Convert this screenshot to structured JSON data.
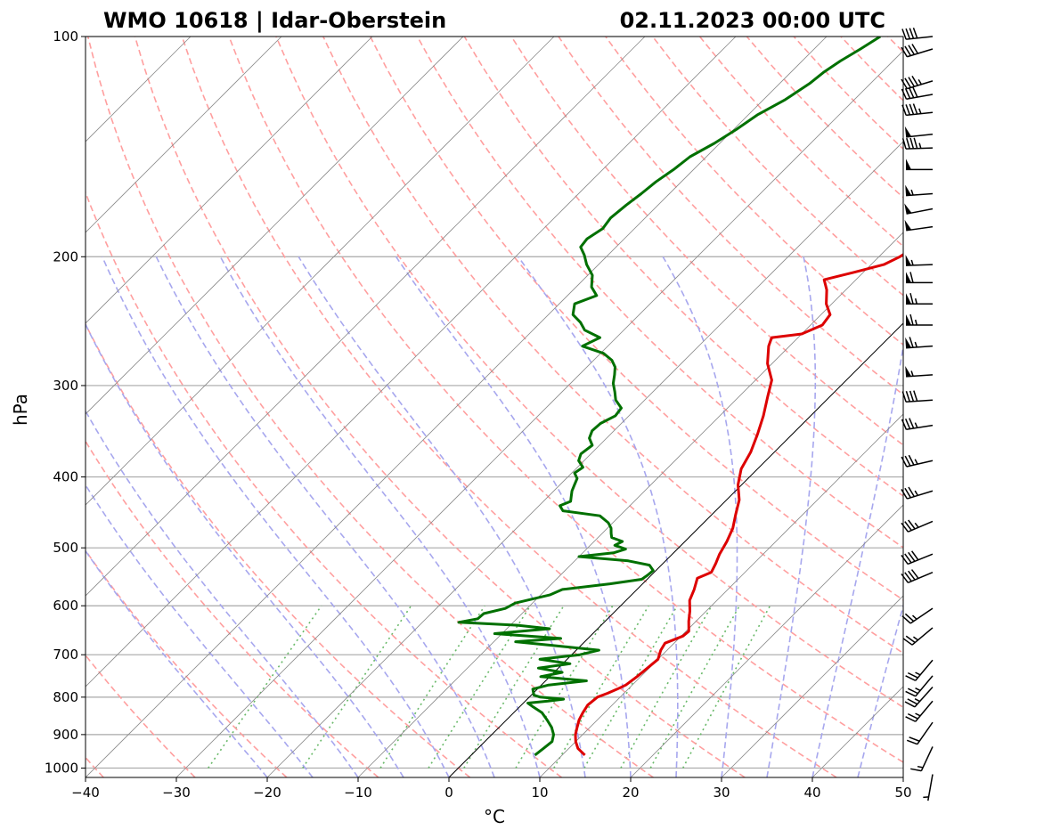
{
  "chart_data": {
    "type": "line",
    "subtype": "skew-t log-p",
    "title_left": "WMO 10618 | Idar-Oberstein",
    "title_right": "02.11.2023 00:00 UTC",
    "xlabel": "°C",
    "ylabel": "hPa",
    "xlim": [
      -40,
      50
    ],
    "ylim": [
      1030,
      100
    ],
    "x_ticks": [
      -40,
      -30,
      -20,
      -10,
      0,
      10,
      20,
      30,
      40,
      50
    ],
    "x_tick_labels": [
      "−40",
      "−30",
      "−20",
      "−10",
      "0",
      "10",
      "20",
      "30",
      "40",
      "50"
    ],
    "y_ticks": [
      100,
      200,
      300,
      400,
      500,
      600,
      700,
      800,
      900,
      1000
    ],
    "y_tick_labels": [
      "100",
      "200",
      "300",
      "400",
      "500",
      "600",
      "700",
      "800",
      "900",
      "1000"
    ],
    "isotherms_c": [
      -110,
      -100,
      -90,
      -80,
      -70,
      -60,
      -50,
      -40,
      -30,
      -20,
      -10,
      0,
      10,
      20,
      30,
      40,
      50
    ],
    "highlight_isotherm_c": 0,
    "dry_adiabats_theta_c": [
      -40,
      -30,
      -20,
      -10,
      0,
      10,
      20,
      30,
      40,
      50,
      60,
      70,
      80,
      90,
      100,
      110,
      120,
      130,
      140,
      150,
      160,
      170,
      180,
      190,
      200
    ],
    "moist_adiabats_start_c": [
      -20,
      -15,
      -10,
      -5,
      0,
      5,
      10,
      15,
      20,
      25,
      30,
      35,
      40,
      45
    ],
    "mixing_ratio_gkg": [
      0.4,
      1,
      2,
      3,
      4,
      6,
      8,
      10,
      13,
      16,
      20
    ],
    "series": [
      {
        "name": "temperature",
        "color": "#dd0000",
        "points": [
          [
            960,
            12.5
          ],
          [
            940,
            11.0
          ],
          [
            920,
            10.0
          ],
          [
            900,
            9.2
          ],
          [
            880,
            8.6
          ],
          [
            860,
            8.0
          ],
          [
            840,
            7.6
          ],
          [
            820,
            7.3
          ],
          [
            800,
            7.5
          ],
          [
            790,
            8.2
          ],
          [
            780,
            8.8
          ],
          [
            770,
            9.3
          ],
          [
            750,
            9.6
          ],
          [
            730,
            9.8
          ],
          [
            710,
            10.0
          ],
          [
            690,
            9.3
          ],
          [
            675,
            9.0
          ],
          [
            660,
            10.2
          ],
          [
            650,
            10.3
          ],
          [
            630,
            9.2
          ],
          [
            610,
            8.2
          ],
          [
            590,
            7.0
          ],
          [
            570,
            6.3
          ],
          [
            550,
            5.4
          ],
          [
            540,
            6.3
          ],
          [
            525,
            5.8
          ],
          [
            510,
            5.2
          ],
          [
            490,
            4.6
          ],
          [
            470,
            3.8
          ],
          [
            450,
            2.6
          ],
          [
            430,
            1.4
          ],
          [
            410,
            -0.4
          ],
          [
            390,
            -1.8
          ],
          [
            370,
            -2.6
          ],
          [
            350,
            -3.8
          ],
          [
            330,
            -5.2
          ],
          [
            310,
            -6.9
          ],
          [
            295,
            -8.2
          ],
          [
            280,
            -10.5
          ],
          [
            265,
            -12.3
          ],
          [
            258,
            -12.9
          ],
          [
            255,
            -10.0
          ],
          [
            248,
            -8.7
          ],
          [
            240,
            -9.0
          ],
          [
            232,
            -10.6
          ],
          [
            222,
            -12.1
          ],
          [
            215,
            -13.5
          ],
          [
            210,
            -11.0
          ],
          [
            205,
            -8.6
          ],
          [
            200,
            -7.7
          ],
          [
            192,
            -6.9
          ],
          [
            183,
            -6.0
          ],
          [
            177,
            -5.4
          ],
          [
            172,
            -4.3
          ],
          [
            166,
            -3.9
          ],
          [
            160,
            -2.8
          ],
          [
            155,
            -1.9
          ],
          [
            150,
            -1.8
          ],
          [
            147,
            0.5
          ],
          [
            142,
            1.2
          ],
          [
            137,
            1.9
          ],
          [
            132,
            1.8
          ],
          [
            128,
            3.3
          ],
          [
            124,
            3.7
          ],
          [
            120,
            5.1
          ],
          [
            116,
            5.3
          ],
          [
            112,
            6.1
          ],
          [
            108,
            7.2
          ],
          [
            104,
            8.3
          ],
          [
            101,
            9.0
          ],
          [
            100,
            9.1
          ]
        ]
      },
      {
        "name": "dewpoint",
        "color": "#007000",
        "points": [
          [
            960,
            7.0
          ],
          [
            940,
            7.2
          ],
          [
            920,
            7.4
          ],
          [
            900,
            6.8
          ],
          [
            880,
            5.8
          ],
          [
            860,
            4.5
          ],
          [
            840,
            3.1
          ],
          [
            825,
            1.5
          ],
          [
            815,
            0.5
          ],
          [
            810,
            2.5
          ],
          [
            805,
            4.0
          ],
          [
            800,
            1.2
          ],
          [
            795,
            0.3
          ],
          [
            780,
            -0.5
          ],
          [
            770,
            0.8
          ],
          [
            760,
            4.5
          ],
          [
            750,
            -1.0
          ],
          [
            740,
            0.9
          ],
          [
            730,
            -2.2
          ],
          [
            720,
            0.8
          ],
          [
            710,
            -3.0
          ],
          [
            700,
            0.9
          ],
          [
            690,
            2.5
          ],
          [
            680,
            -3.0
          ],
          [
            672,
            -7.6
          ],
          [
            665,
            -3.0
          ],
          [
            655,
            -10.8
          ],
          [
            645,
            -5.3
          ],
          [
            638,
            -9.2
          ],
          [
            632,
            -16.0
          ],
          [
            625,
            -14.3
          ],
          [
            615,
            -14.2
          ],
          [
            605,
            -12.4
          ],
          [
            595,
            -11.9
          ],
          [
            580,
            -9.0
          ],
          [
            570,
            -8.2
          ],
          [
            560,
            -3.6
          ],
          [
            552,
            -0.6
          ],
          [
            545,
            -0.4
          ],
          [
            537,
            -0.3
          ],
          [
            528,
            -1.3
          ],
          [
            521,
            -4.1
          ],
          [
            514,
            -10.0
          ],
          [
            508,
            -6.6
          ],
          [
            502,
            -5.7
          ],
          [
            496,
            -7.3
          ],
          [
            490,
            -6.9
          ],
          [
            484,
            -8.5
          ],
          [
            478,
            -9.0
          ],
          [
            470,
            -9.6
          ],
          [
            462,
            -10.5
          ],
          [
            452,
            -12.2
          ],
          [
            445,
            -16.8
          ],
          [
            438,
            -17.7
          ],
          [
            432,
            -17.0
          ],
          [
            425,
            -17.5
          ],
          [
            418,
            -18.0
          ],
          [
            410,
            -18.4
          ],
          [
            402,
            -18.8
          ],
          [
            395,
            -19.7
          ],
          [
            388,
            -19.4
          ],
          [
            380,
            -20.6
          ],
          [
            372,
            -21.1
          ],
          [
            362,
            -20.8
          ],
          [
            354,
            -21.9
          ],
          [
            346,
            -22.4
          ],
          [
            338,
            -22.3
          ],
          [
            330,
            -21.5
          ],
          [
            322,
            -21.7
          ],
          [
            314,
            -23.2
          ],
          [
            306,
            -24.2
          ],
          [
            298,
            -25.3
          ],
          [
            290,
            -26.1
          ],
          [
            283,
            -26.9
          ],
          [
            277,
            -28.0
          ],
          [
            271,
            -29.7
          ],
          [
            265,
            -32.8
          ],
          [
            258,
            -31.8
          ],
          [
            252,
            -34.3
          ],
          [
            246,
            -35.6
          ],
          [
            240,
            -37.3
          ],
          [
            232,
            -38.3
          ],
          [
            226,
            -36.8
          ],
          [
            220,
            -38.3
          ],
          [
            212,
            -39.5
          ],
          [
            205,
            -41.3
          ],
          [
            199,
            -42.6
          ],
          [
            194,
            -43.9
          ],
          [
            189,
            -44.1
          ],
          [
            183,
            -43.5
          ],
          [
            177,
            -43.8
          ],
          [
            170,
            -43.5
          ],
          [
            164,
            -43.1
          ],
          [
            158,
            -42.8
          ],
          [
            152,
            -42.2
          ],
          [
            146,
            -41.8
          ],
          [
            140,
            -40.6
          ],
          [
            134,
            -39.7
          ],
          [
            128,
            -39.0
          ],
          [
            122,
            -37.6
          ],
          [
            116,
            -36.7
          ],
          [
            112,
            -36.4
          ],
          [
            108,
            -35.8
          ],
          [
            104,
            -34.9
          ],
          [
            100,
            -34.1
          ]
        ]
      }
    ],
    "wind_barbs": [
      {
        "p": 100,
        "speed_kt": 40,
        "dir_deg": 264
      },
      {
        "p": 104,
        "speed_kt": 40,
        "dir_deg": 253
      },
      {
        "p": 115,
        "speed_kt": 45,
        "dir_deg": 253
      },
      {
        "p": 120,
        "speed_kt": 40,
        "dir_deg": 260
      },
      {
        "p": 127,
        "speed_kt": 45,
        "dir_deg": 264
      },
      {
        "p": 136,
        "speed_kt": 50,
        "dir_deg": 264
      },
      {
        "p": 142,
        "speed_kt": 45,
        "dir_deg": 268
      },
      {
        "p": 152,
        "speed_kt": 50,
        "dir_deg": 270
      },
      {
        "p": 164,
        "speed_kt": 55,
        "dir_deg": 266
      },
      {
        "p": 172,
        "speed_kt": 50,
        "dir_deg": 259
      },
      {
        "p": 182,
        "speed_kt": 50,
        "dir_deg": 262
      },
      {
        "p": 205,
        "speed_kt": 55,
        "dir_deg": 268
      },
      {
        "p": 217,
        "speed_kt": 60,
        "dir_deg": 270
      },
      {
        "p": 232,
        "speed_kt": 65,
        "dir_deg": 270
      },
      {
        "p": 248,
        "speed_kt": 65,
        "dir_deg": 270
      },
      {
        "p": 265,
        "speed_kt": 65,
        "dir_deg": 266
      },
      {
        "p": 290,
        "speed_kt": 55,
        "dir_deg": 266
      },
      {
        "p": 314,
        "speed_kt": 40,
        "dir_deg": 266
      },
      {
        "p": 340,
        "speed_kt": 35,
        "dir_deg": 261
      },
      {
        "p": 380,
        "speed_kt": 35,
        "dir_deg": 257
      },
      {
        "p": 418,
        "speed_kt": 35,
        "dir_deg": 253
      },
      {
        "p": 460,
        "speed_kt": 35,
        "dir_deg": 247
      },
      {
        "p": 510,
        "speed_kt": 40,
        "dir_deg": 248
      },
      {
        "p": 540,
        "speed_kt": 40,
        "dir_deg": 247
      },
      {
        "p": 605,
        "speed_kt": 25,
        "dir_deg": 236
      },
      {
        "p": 643,
        "speed_kt": 25,
        "dir_deg": 230
      },
      {
        "p": 712,
        "speed_kt": 25,
        "dir_deg": 220
      },
      {
        "p": 748,
        "speed_kt": 25,
        "dir_deg": 220
      },
      {
        "p": 775,
        "speed_kt": 25,
        "dir_deg": 222
      },
      {
        "p": 810,
        "speed_kt": 25,
        "dir_deg": 220
      },
      {
        "p": 866,
        "speed_kt": 20,
        "dir_deg": 215
      },
      {
        "p": 935,
        "speed_kt": 15,
        "dir_deg": 205
      },
      {
        "p": 1020,
        "speed_kt": 5,
        "dir_deg": 190
      }
    ],
    "colors": {
      "isotherm": "#8a8a8a",
      "isobar": "#a8a8a8",
      "dry_adiabat": "#ff9f9f",
      "moist_adiabat": "#a7a7ee",
      "mixing_ratio": "#69b969"
    }
  }
}
